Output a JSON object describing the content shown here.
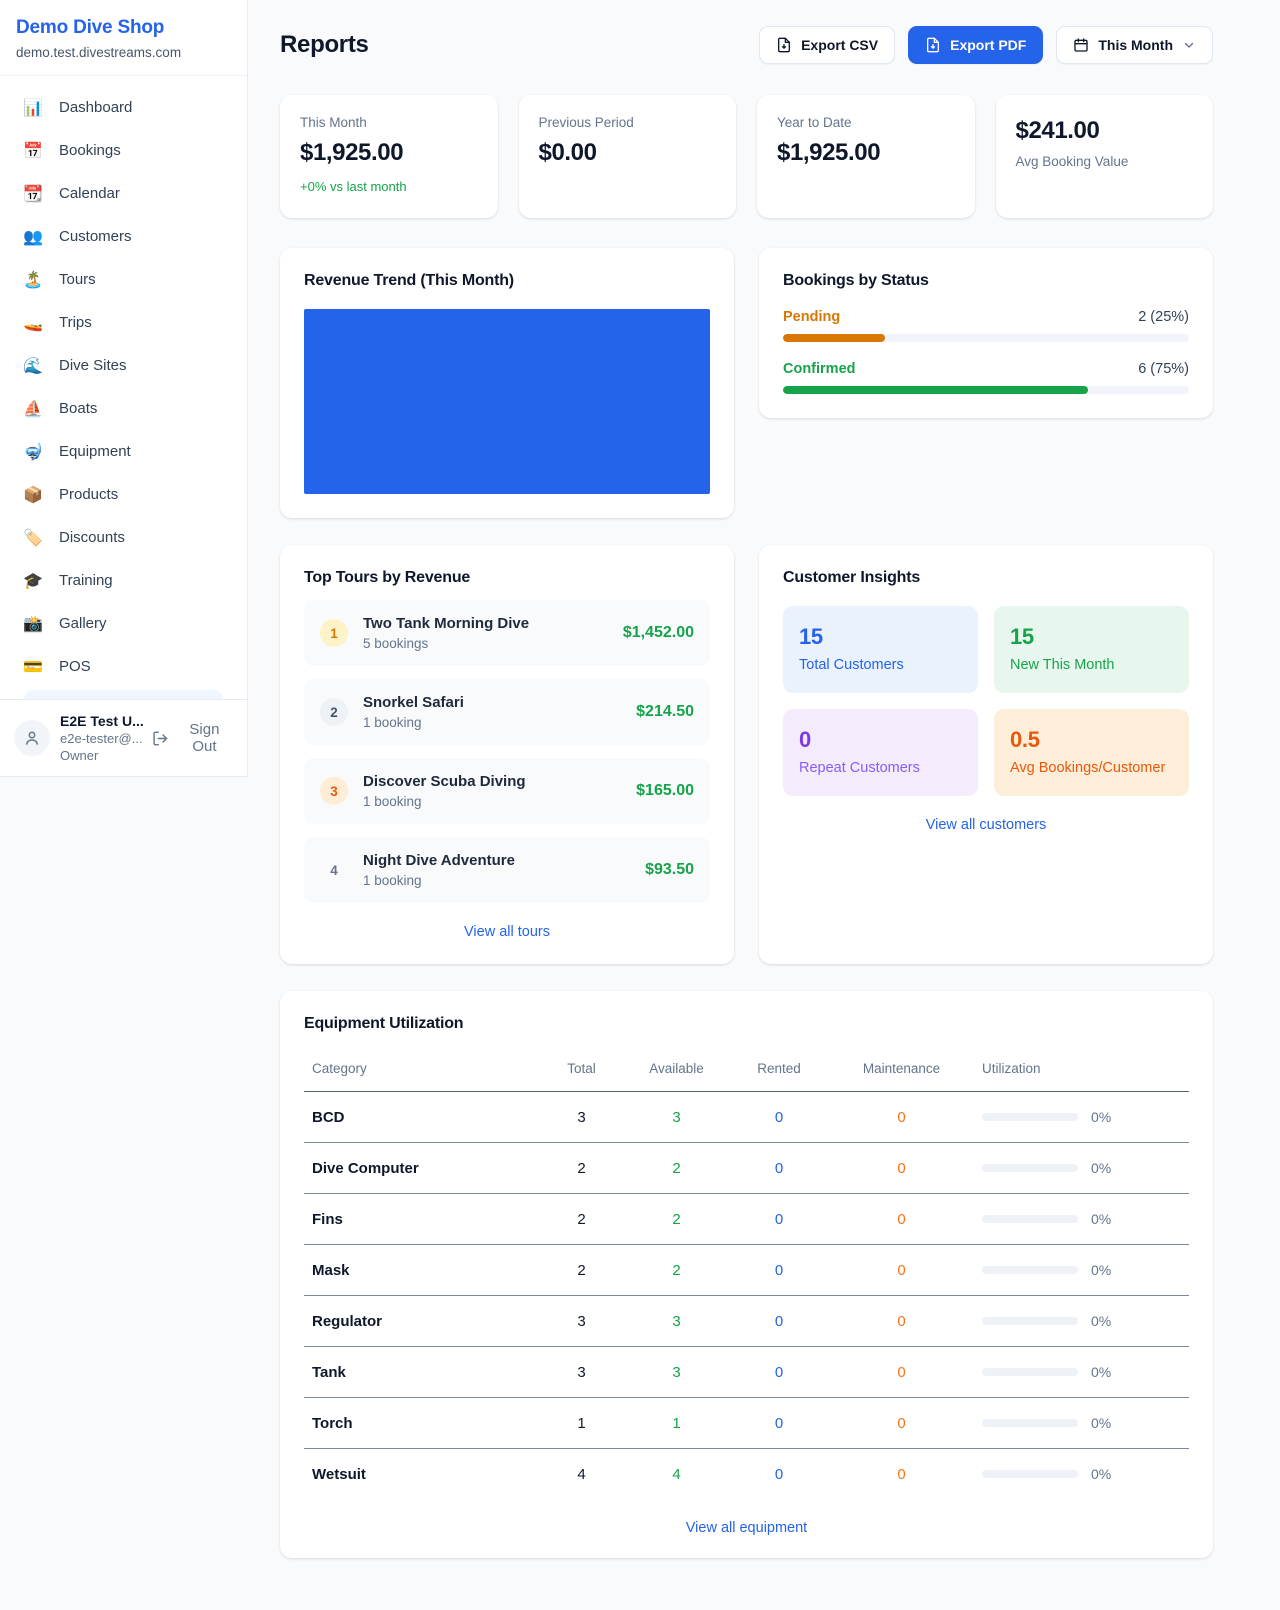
{
  "colors": {
    "brand": "#2563eb",
    "green": "#16a34a",
    "amber": "#d97706",
    "orange": "#ea580c",
    "purple": "#7c3aed",
    "revenue_fill": "#2563eb"
  },
  "sidebar": {
    "shop_name": "Demo Dive Shop",
    "shop_domain": "demo.test.divestreams.com",
    "items": [
      {
        "icon": "📊",
        "label": "Dashboard"
      },
      {
        "icon": "📅",
        "label": "Bookings"
      },
      {
        "icon": "📆",
        "label": "Calendar"
      },
      {
        "icon": "👥",
        "label": "Customers"
      },
      {
        "icon": "🏝️",
        "label": "Tours"
      },
      {
        "icon": "🚤",
        "label": "Trips"
      },
      {
        "icon": "🌊",
        "label": "Dive Sites"
      },
      {
        "icon": "⛵",
        "label": "Boats"
      },
      {
        "icon": "🤿",
        "label": "Equipment"
      },
      {
        "icon": "📦",
        "label": "Products"
      },
      {
        "icon": "🏷️",
        "label": "Discounts"
      },
      {
        "icon": "🎓",
        "label": "Training"
      },
      {
        "icon": "📸",
        "label": "Gallery"
      },
      {
        "icon": "💳",
        "label": "POS"
      }
    ],
    "user": {
      "name": "E2E Test U...",
      "email": "e2e-tester@...",
      "role": "Owner",
      "sign_out_label": "Sign Out"
    }
  },
  "header": {
    "title": "Reports",
    "export_csv_label": "Export CSV",
    "export_pdf_label": "Export PDF",
    "period_label": "This Month"
  },
  "stats": {
    "this_month": {
      "label": "This Month",
      "value": "$1,925.00",
      "delta": "+0% vs last month"
    },
    "previous_period": {
      "label": "Previous Period",
      "value": "$0.00"
    },
    "year_to_date": {
      "label": "Year to Date",
      "value": "$1,925.00"
    },
    "avg_booking": {
      "value": "$241.00",
      "label": "Avg Booking Value"
    }
  },
  "revenue_trend": {
    "title": "Revenue Trend (This Month)"
  },
  "bookings_by_status": {
    "title": "Bookings by Status",
    "rows": [
      {
        "label": "Pending",
        "count": "2 (25%)",
        "percent": 25,
        "color": "#d97706"
      },
      {
        "label": "Confirmed",
        "count": "6 (75%)",
        "percent": 75,
        "color": "#16a34a"
      }
    ]
  },
  "top_tours": {
    "title": "Top Tours by Revenue",
    "link": "View all tours",
    "rows": [
      {
        "rank": "1",
        "name": "Two Tank Morning Dive",
        "bookings": "5 bookings",
        "amount": "$1,452.00",
        "badge_bg": "#fef3c7",
        "badge_color": "#d97706"
      },
      {
        "rank": "2",
        "name": "Snorkel Safari",
        "bookings": "1 booking",
        "amount": "$214.50",
        "badge_bg": "#eef2f6",
        "badge_color": "#475569"
      },
      {
        "rank": "3",
        "name": "Discover Scuba Diving",
        "bookings": "1 booking",
        "amount": "$165.00",
        "badge_bg": "#ffedd5",
        "badge_color": "#ea580c"
      },
      {
        "rank": "4",
        "name": "Night Dive Adventure",
        "bookings": "1 booking",
        "amount": "$93.50",
        "badge_bg": "#f8fafc",
        "badge_color": "#64748b"
      }
    ]
  },
  "customer_insights": {
    "title": "Customer Insights",
    "link": "View all customers",
    "tiles": [
      {
        "value": "15",
        "label": "Total Customers",
        "value_color": "#2563eb",
        "label_color": "#2563eb",
        "bg": "#eaf2fe"
      },
      {
        "value": "15",
        "label": "New This Month",
        "value_color": "#16a34a",
        "label_color": "#16a34a",
        "bg": "#e8f7ee"
      },
      {
        "value": "0",
        "label": "Repeat Customers",
        "value_color": "#7c3aed",
        "label_color": "#8b5cf6",
        "bg": "#f4ecfd"
      },
      {
        "value": "0.5",
        "label": "Avg Bookings/Customer",
        "value_color": "#ea580c",
        "label_color": "#ea580c",
        "bg": "#fdeeda"
      }
    ]
  },
  "equipment": {
    "title": "Equipment Utilization",
    "link": "View all equipment",
    "columns": [
      "Category",
      "Total",
      "Available",
      "Rented",
      "Maintenance",
      "Utilization"
    ],
    "rows": [
      {
        "category": "BCD",
        "total": "3",
        "available": "3",
        "rented": "0",
        "maintenance": "0",
        "utilization": "0%",
        "percent": 0
      },
      {
        "category": "Dive Computer",
        "total": "2",
        "available": "2",
        "rented": "0",
        "maintenance": "0",
        "utilization": "0%",
        "percent": 0
      },
      {
        "category": "Fins",
        "total": "2",
        "available": "2",
        "rented": "0",
        "maintenance": "0",
        "utilization": "0%",
        "percent": 0
      },
      {
        "category": "Mask",
        "total": "2",
        "available": "2",
        "rented": "0",
        "maintenance": "0",
        "utilization": "0%",
        "percent": 0
      },
      {
        "category": "Regulator",
        "total": "3",
        "available": "3",
        "rented": "0",
        "maintenance": "0",
        "utilization": "0%",
        "percent": 0
      },
      {
        "category": "Tank",
        "total": "3",
        "available": "3",
        "rented": "0",
        "maintenance": "0",
        "utilization": "0%",
        "percent": 0
      },
      {
        "category": "Torch",
        "total": "1",
        "available": "1",
        "rented": "0",
        "maintenance": "0",
        "utilization": "0%",
        "percent": 0
      },
      {
        "category": "Wetsuit",
        "total": "4",
        "available": "4",
        "rented": "0",
        "maintenance": "0",
        "utilization": "0%",
        "percent": 0
      }
    ]
  }
}
